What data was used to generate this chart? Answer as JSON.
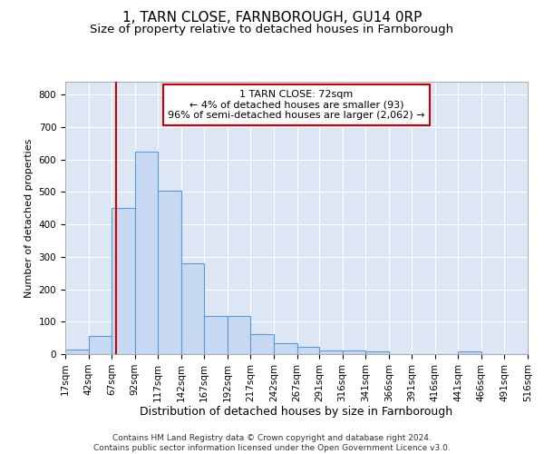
{
  "title1": "1, TARN CLOSE, FARNBOROUGH, GU14 0RP",
  "title2": "Size of property relative to detached houses in Farnborough",
  "xlabel": "Distribution of detached houses by size in Farnborough",
  "ylabel": "Number of detached properties",
  "bin_edges": [
    17,
    42,
    67,
    92,
    117,
    142,
    167,
    192,
    217,
    242,
    267,
    291,
    316,
    341,
    366,
    391,
    416,
    441,
    466,
    491,
    516
  ],
  "bar_heights": [
    13,
    55,
    450,
    625,
    503,
    280,
    118,
    118,
    62,
    35,
    22,
    10,
    10,
    8,
    0,
    0,
    0,
    8,
    0,
    0
  ],
  "bar_color": "#c6d9f0",
  "bar_edge_color": "#5b9bd5",
  "vline_x": 72,
  "vline_color": "#cc0000",
  "annotation_text": "1 TARN CLOSE: 72sqm\n← 4% of detached houses are smaller (93)\n96% of semi-detached houses are larger (2,062) →",
  "box_edge_color": "#cc0000",
  "ylim": [
    0,
    840
  ],
  "yticks": [
    0,
    100,
    200,
    300,
    400,
    500,
    600,
    700,
    800
  ],
  "background_color": "#dce6f5",
  "grid_color": "#ffffff",
  "footer_text": "Contains HM Land Registry data © Crown copyright and database right 2024.\nContains public sector information licensed under the Open Government Licence v3.0.",
  "title1_fontsize": 11,
  "title2_fontsize": 9.5,
  "xlabel_fontsize": 9,
  "ylabel_fontsize": 8,
  "tick_fontsize": 7.5,
  "annotation_fontsize": 8,
  "footer_fontsize": 6.5
}
